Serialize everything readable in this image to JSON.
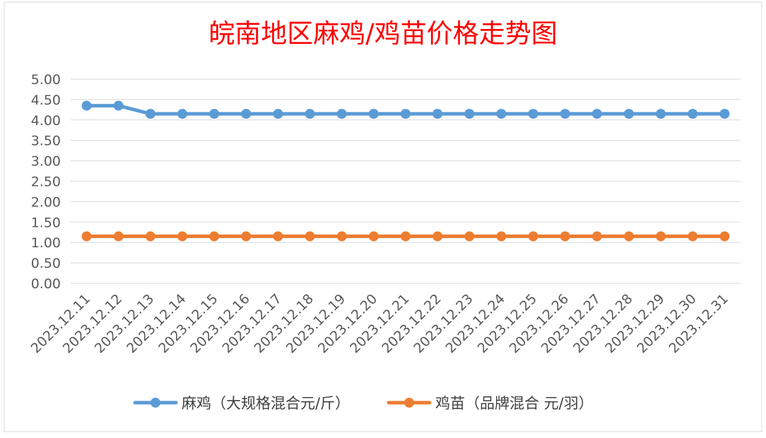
{
  "chart_data": {
    "type": "line",
    "title": "皖南地区麻鸡/鸡苗价格走势图",
    "xlabel": "",
    "ylabel": "",
    "categories": [
      "2023.12.11",
      "2023.12.12",
      "2023.12.13",
      "2023.12.14",
      "2023.12.15",
      "2023.12.16",
      "2023.12.17",
      "2023.12.18",
      "2023.12.19",
      "2023.12.20",
      "2023.12.21",
      "2023.12.22",
      "2023.12.23",
      "2023.12.24",
      "2023.12.25",
      "2023.12.26",
      "2023.12.27",
      "2023.12.28",
      "2023.12.29",
      "2023.12.30",
      "2023.12.31"
    ],
    "y_ticks": [
      "0.00",
      "0.50",
      "1.00",
      "1.50",
      "2.00",
      "2.50",
      "3.00",
      "3.50",
      "4.00",
      "4.50",
      "5.00"
    ],
    "ylim": [
      0,
      5
    ],
    "grid": true,
    "legend_position": "bottom",
    "series": [
      {
        "name": "麻鸡（大规格混合元/斤）",
        "color": "#5B9BD5",
        "values": [
          4.35,
          4.35,
          4.15,
          4.15,
          4.15,
          4.15,
          4.15,
          4.15,
          4.15,
          4.15,
          4.15,
          4.15,
          4.15,
          4.15,
          4.15,
          4.15,
          4.15,
          4.15,
          4.15,
          4.15,
          4.15
        ]
      },
      {
        "name": "鸡苗（品牌混合 元/羽）",
        "color": "#ED7D31",
        "values": [
          1.15,
          1.15,
          1.15,
          1.15,
          1.15,
          1.15,
          1.15,
          1.15,
          1.15,
          1.15,
          1.15,
          1.15,
          1.15,
          1.15,
          1.15,
          1.15,
          1.15,
          1.15,
          1.15,
          1.15,
          1.15
        ]
      }
    ],
    "title_color": "#FF0000"
  }
}
